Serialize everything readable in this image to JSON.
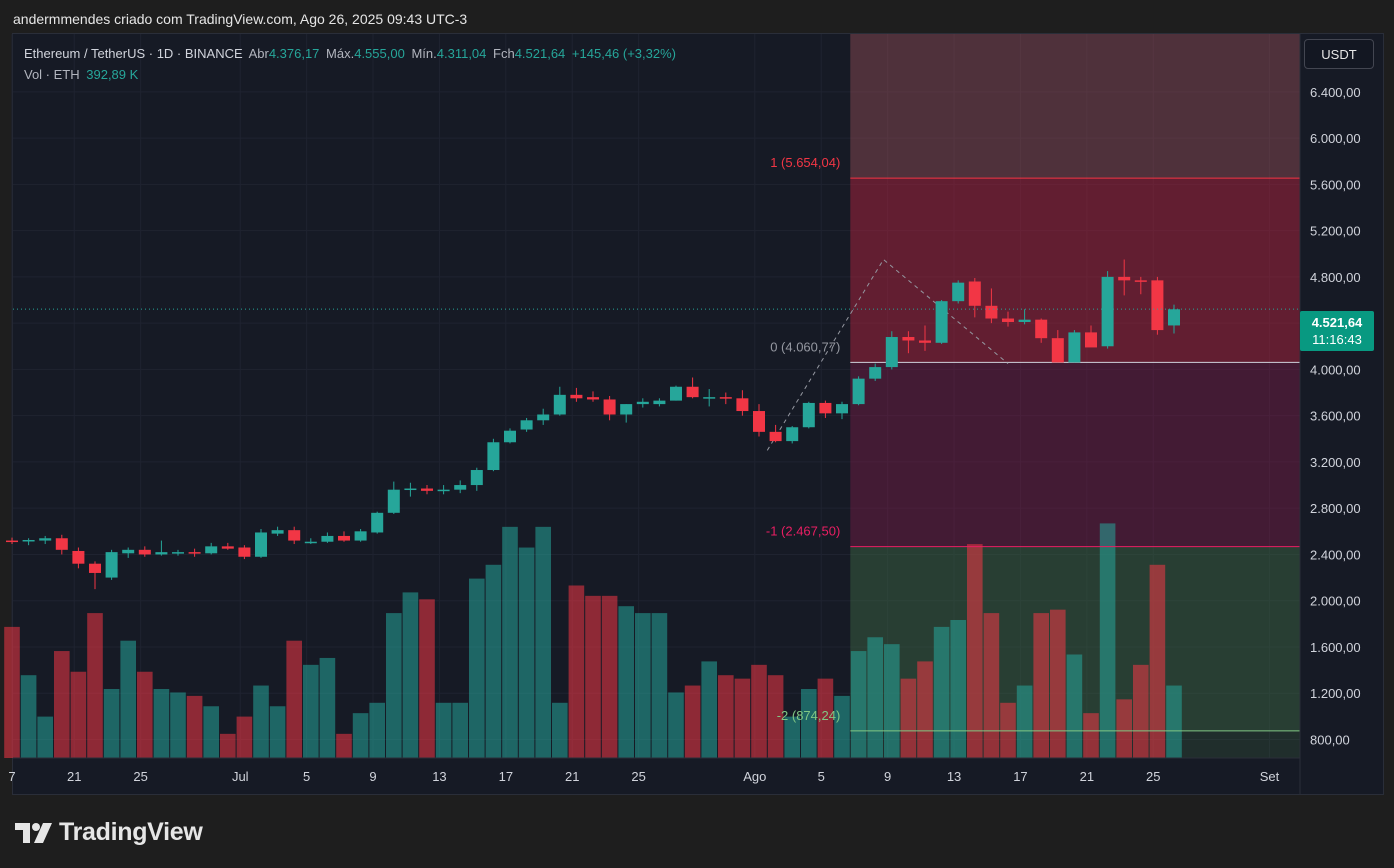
{
  "page_title": "andermmendes criado com TradingView.com, Ago 26, 2025 09:43 UTC-3",
  "logo_text": "TradingView",
  "legend": {
    "symbol": "Ethereum / TetherUS · 1D · BINANCE",
    "open_label": "Abr",
    "open": "4.376,17",
    "high_label": "Máx.",
    "high": "4.555,00",
    "low_label": "Mín.",
    "low": "4.311,04",
    "close_label": "Fch",
    "close": "4.521,64",
    "change": "+145,46 (+3,32%)",
    "vol_label": "Vol · ETH",
    "vol": "392,89 K"
  },
  "currency": "USDT",
  "last_price": {
    "price": "4.521,64",
    "countdown": "11:16:43"
  },
  "colors": {
    "up": "#26a69a",
    "down": "#f23645",
    "bg": "#161a25",
    "grid": "#1f2330",
    "fib_line": "#d1d4dc",
    "level_plus1": "#f23645",
    "level_minus1": "#e91e63",
    "level_minus2": "#81c784"
  },
  "chart_data": {
    "type": "candlestick",
    "title": "Ethereum / TetherUS · 1D · BINANCE",
    "ylabel": "USDT",
    "ylim": [
      640,
      6900
    ],
    "y_ticks": [
      800,
      1200,
      1600,
      2000,
      2400,
      2800,
      3200,
      3600,
      4000,
      4400,
      4800,
      5200,
      5600,
      6000,
      6400
    ],
    "y_tick_labels": [
      "800,00",
      "1.200,00",
      "1.600,00",
      "2.000,00",
      "2.400,00",
      "2.800,00",
      "3.200,00",
      "3.600,00",
      "4.000,00",
      "4.400,00",
      "4.800,00",
      "5.200,00",
      "5.600,00",
      "6.000,00",
      "6.400,00"
    ],
    "x_ticks": [
      {
        "label": "7",
        "day": 0
      },
      {
        "label": "21",
        "day": 3.75
      },
      {
        "label": "25",
        "day": 7.75
      },
      {
        "label": "Jul",
        "day": 13.75
      },
      {
        "label": "5",
        "day": 17.75
      },
      {
        "label": "9",
        "day": 21.75
      },
      {
        "label": "13",
        "day": 25.75
      },
      {
        "label": "17",
        "day": 29.75
      },
      {
        "label": "21",
        "day": 33.75
      },
      {
        "label": "25",
        "day": 37.75
      },
      {
        "label": "Ago",
        "day": 44.75
      },
      {
        "label": "5",
        "day": 48.75
      },
      {
        "label": "9",
        "day": 52.75
      },
      {
        "label": "13",
        "day": 56.75
      },
      {
        "label": "17",
        "day": 60.75
      },
      {
        "label": "21",
        "day": 64.75
      },
      {
        "label": "25",
        "day": 68.75
      },
      {
        "label": "Set",
        "day": 75.75
      }
    ],
    "ohlc": [
      [
        2520,
        2545,
        2490,
        2510
      ],
      [
        2515,
        2540,
        2480,
        2525
      ],
      [
        2520,
        2560,
        2490,
        2540
      ],
      [
        2540,
        2570,
        2400,
        2440
      ],
      [
        2430,
        2460,
        2280,
        2320
      ],
      [
        2320,
        2340,
        2100,
        2240
      ],
      [
        2200,
        2440,
        2180,
        2420
      ],
      [
        2410,
        2460,
        2370,
        2440
      ],
      [
        2440,
        2470,
        2380,
        2400
      ],
      [
        2400,
        2520,
        2390,
        2420
      ],
      [
        2410,
        2440,
        2390,
        2420
      ],
      [
        2420,
        2450,
        2380,
        2410
      ],
      [
        2410,
        2500,
        2400,
        2470
      ],
      [
        2470,
        2500,
        2440,
        2450
      ],
      [
        2460,
        2480,
        2360,
        2380
      ],
      [
        2380,
        2620,
        2370,
        2590
      ],
      [
        2580,
        2640,
        2560,
        2610
      ],
      [
        2610,
        2640,
        2490,
        2520
      ],
      [
        2510,
        2540,
        2490,
        2510
      ],
      [
        2510,
        2590,
        2500,
        2560
      ],
      [
        2560,
        2600,
        2510,
        2520
      ],
      [
        2520,
        2620,
        2510,
        2600
      ],
      [
        2590,
        2770,
        2580,
        2760
      ],
      [
        2760,
        3030,
        2750,
        2960
      ],
      [
        2960,
        3020,
        2900,
        2970
      ],
      [
        2970,
        3000,
        2920,
        2950
      ],
      [
        2950,
        3000,
        2920,
        2960
      ],
      [
        2960,
        3040,
        2930,
        3000
      ],
      [
        3000,
        3150,
        2950,
        3130
      ],
      [
        3130,
        3400,
        3120,
        3370
      ],
      [
        3370,
        3490,
        3360,
        3470
      ],
      [
        3480,
        3580,
        3460,
        3560
      ],
      [
        3560,
        3660,
        3520,
        3610
      ],
      [
        3610,
        3850,
        3600,
        3780
      ],
      [
        3780,
        3840,
        3720,
        3750
      ],
      [
        3760,
        3810,
        3720,
        3740
      ],
      [
        3740,
        3770,
        3560,
        3610
      ],
      [
        3610,
        3700,
        3540,
        3700
      ],
      [
        3700,
        3750,
        3670,
        3720
      ],
      [
        3700,
        3750,
        3680,
        3730
      ],
      [
        3730,
        3860,
        3730,
        3850
      ],
      [
        3850,
        3930,
        3750,
        3760
      ],
      [
        3760,
        3830,
        3680,
        3760
      ],
      [
        3760,
        3800,
        3700,
        3750
      ],
      [
        3750,
        3820,
        3600,
        3640
      ],
      [
        3640,
        3700,
        3420,
        3460
      ],
      [
        3460,
        3520,
        3370,
        3380
      ],
      [
        3380,
        3510,
        3360,
        3500
      ],
      [
        3500,
        3720,
        3490,
        3710
      ],
      [
        3710,
        3730,
        3580,
        3620
      ],
      [
        3620,
        3720,
        3570,
        3700
      ],
      [
        3700,
        3940,
        3690,
        3920
      ],
      [
        3920,
        4050,
        3900,
        4020
      ],
      [
        4020,
        4330,
        4000,
        4280
      ],
      [
        4280,
        4330,
        4140,
        4250
      ],
      [
        4250,
        4380,
        4160,
        4230
      ],
      [
        4230,
        4600,
        4220,
        4590
      ],
      [
        4590,
        4770,
        4570,
        4750
      ],
      [
        4760,
        4790,
        4450,
        4550
      ],
      [
        4550,
        4700,
        4400,
        4440
      ],
      [
        4440,
        4500,
        4370,
        4410
      ],
      [
        4410,
        4520,
        4390,
        4430
      ],
      [
        4430,
        4440,
        4230,
        4270
      ],
      [
        4270,
        4340,
        4060,
        4060
      ],
      [
        4060,
        4340,
        4060,
        4320
      ],
      [
        4320,
        4380,
        4210,
        4190
      ],
      [
        4200,
        4850,
        4180,
        4800
      ],
      [
        4800,
        4950,
        4640,
        4770
      ],
      [
        4770,
        4800,
        4650,
        4760
      ],
      [
        4770,
        4800,
        4300,
        4340
      ],
      [
        4380,
        4560,
        4310,
        4520
      ]
    ],
    "volume_scale_max_pct": 100,
    "volume_pct": [
      38,
      24,
      12,
      31,
      25,
      42,
      20,
      34,
      25,
      20,
      19,
      18,
      15,
      7,
      12,
      21,
      15,
      34,
      27,
      29,
      7,
      13,
      16,
      42,
      48,
      46,
      16,
      16,
      52,
      56,
      67,
      61,
      67,
      16,
      50,
      47,
      47,
      44,
      42,
      42,
      19,
      21,
      28,
      24,
      23,
      27,
      24,
      12,
      20,
      23,
      18,
      31,
      35,
      33,
      23,
      28,
      38,
      40,
      62,
      42,
      16,
      21,
      42,
      43,
      30,
      13,
      68,
      17,
      27,
      56,
      21
    ],
    "fib_levels": [
      {
        "ratio": 1,
        "price": 5654.04,
        "label": "1 (5.654,04)"
      },
      {
        "ratio": 0,
        "price": 4060.77,
        "label": "0 (4.060,77)"
      },
      {
        "ratio": -1,
        "price": 2467.5,
        "label": "-1 (2.467,50)"
      },
      {
        "ratio": -2,
        "price": 874.24,
        "label": "-2 (874,24)"
      }
    ],
    "trend_line": {
      "points": [
        [
          45.5,
          3300
        ],
        [
          52.5,
          4950
        ],
        [
          60.0,
          4050
        ]
      ]
    },
    "last_close": 4521.64
  }
}
